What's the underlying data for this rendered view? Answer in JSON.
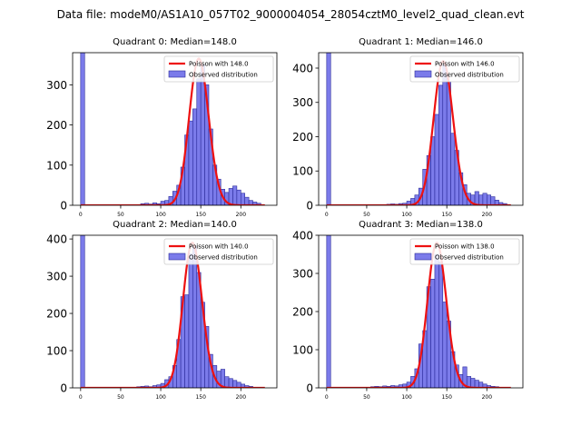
{
  "figure": {
    "suptitle": "Data file: modeM0/AS1A10_057T02_9000004054_28054cztM0_level2_quad_clean.evt"
  },
  "colors": {
    "bar_fill": "#7b7bea",
    "bar_edge": "#2a2a9a",
    "poisson_line": "#ee1111",
    "axis": "#000000"
  },
  "chart_data": [
    {
      "type": "bar",
      "title": "Quadrant 0: Median=148.0",
      "xlim": [
        -10,
        245
      ],
      "ylim": [
        0,
        380
      ],
      "xticks": [
        "0",
        "50",
        "100",
        "150",
        "200"
      ],
      "xtick_values": [
        0,
        50,
        100,
        150,
        200
      ],
      "yticks": [
        "0",
        "100",
        "200",
        "300"
      ],
      "ytick_values": [
        0,
        100,
        200,
        300
      ],
      "bin_width": 5,
      "legend": {
        "placement": "top-right",
        "entries": [
          "Poisson with 148.0",
          "Observed distribution"
        ]
      },
      "series": [
        {
          "name": "Observed distribution",
          "kind": "histogram",
          "bins": [
            [
              0,
              380
            ],
            [
              75,
              4
            ],
            [
              80,
              5
            ],
            [
              85,
              3
            ],
            [
              90,
              6
            ],
            [
              95,
              4
            ],
            [
              100,
              10
            ],
            [
              105,
              12
            ],
            [
              110,
              22
            ],
            [
              115,
              35
            ],
            [
              120,
              50
            ],
            [
              125,
              95
            ],
            [
              130,
              175
            ],
            [
              135,
              210
            ],
            [
              140,
              240
            ],
            [
              145,
              315
            ],
            [
              150,
              350
            ],
            [
              155,
              300
            ],
            [
              160,
              190
            ],
            [
              165,
              100
            ],
            [
              170,
              65
            ],
            [
              175,
              40
            ],
            [
              180,
              32
            ],
            [
              185,
              42
            ],
            [
              190,
              48
            ],
            [
              195,
              38
            ],
            [
              200,
              30
            ],
            [
              205,
              20
            ],
            [
              210,
              12
            ],
            [
              215,
              8
            ],
            [
              220,
              5
            ]
          ]
        },
        {
          "name": "Poisson with 148.0",
          "kind": "line",
          "mean": 148.0,
          "peak": 365,
          "x_range": [
            0,
            230
          ]
        }
      ]
    },
    {
      "type": "bar",
      "title": "Quadrant 1: Median=146.0",
      "xlim": [
        -10,
        245
      ],
      "ylim": [
        0,
        445
      ],
      "xticks": [
        "0",
        "50",
        "100",
        "150",
        "200"
      ],
      "xtick_values": [
        0,
        50,
        100,
        150,
        200
      ],
      "yticks": [
        "0",
        "100",
        "200",
        "300",
        "400"
      ],
      "ytick_values": [
        0,
        100,
        200,
        300,
        400
      ],
      "bin_width": 5,
      "legend": {
        "placement": "top-right",
        "entries": [
          "Poisson with 146.0",
          "Observed distribution"
        ]
      },
      "series": [
        {
          "name": "Observed distribution",
          "kind": "histogram",
          "bins": [
            [
              0,
              445
            ],
            [
              75,
              3
            ],
            [
              80,
              4
            ],
            [
              85,
              3
            ],
            [
              90,
              5
            ],
            [
              95,
              6
            ],
            [
              100,
              12
            ],
            [
              105,
              20
            ],
            [
              110,
              30
            ],
            [
              115,
              50
            ],
            [
              120,
              105
            ],
            [
              125,
              145
            ],
            [
              130,
              200
            ],
            [
              135,
              265
            ],
            [
              140,
              350
            ],
            [
              145,
              410
            ],
            [
              150,
              360
            ],
            [
              155,
              210
            ],
            [
              160,
              160
            ],
            [
              165,
              95
            ],
            [
              170,
              60
            ],
            [
              175,
              35
            ],
            [
              180,
              30
            ],
            [
              185,
              40
            ],
            [
              190,
              30
            ],
            [
              195,
              35
            ],
            [
              200,
              30
            ],
            [
              205,
              25
            ],
            [
              210,
              15
            ],
            [
              215,
              8
            ],
            [
              220,
              5
            ]
          ]
        },
        {
          "name": "Poisson with 146.0",
          "kind": "line",
          "mean": 146.0,
          "peak": 420,
          "x_range": [
            0,
            230
          ]
        }
      ]
    },
    {
      "type": "bar",
      "title": "Quadrant 2: Median=140.0",
      "xlim": [
        -10,
        245
      ],
      "ylim": [
        0,
        410
      ],
      "xticks": [
        "0",
        "50",
        "100",
        "150",
        "200"
      ],
      "xtick_values": [
        0,
        50,
        100,
        150,
        200
      ],
      "yticks": [
        "0",
        "100",
        "200",
        "300",
        "400"
      ],
      "ytick_values": [
        0,
        100,
        200,
        300,
        400
      ],
      "bin_width": 5,
      "legend": {
        "placement": "top-right",
        "entries": [
          "Poisson with 140.0",
          "Observed distribution"
        ]
      },
      "series": [
        {
          "name": "Observed distribution",
          "kind": "histogram",
          "bins": [
            [
              0,
              410
            ],
            [
              70,
              3
            ],
            [
              75,
              4
            ],
            [
              80,
              5
            ],
            [
              85,
              3
            ],
            [
              90,
              6
            ],
            [
              95,
              8
            ],
            [
              100,
              12
            ],
            [
              105,
              22
            ],
            [
              110,
              30
            ],
            [
              115,
              60
            ],
            [
              120,
              130
            ],
            [
              125,
              245
            ],
            [
              130,
              250
            ],
            [
              135,
              360
            ],
            [
              140,
              380
            ],
            [
              145,
              310
            ],
            [
              150,
              230
            ],
            [
              155,
              165
            ],
            [
              160,
              90
            ],
            [
              165,
              60
            ],
            [
              170,
              45
            ],
            [
              175,
              50
            ],
            [
              180,
              30
            ],
            [
              185,
              25
            ],
            [
              190,
              20
            ],
            [
              195,
              15
            ],
            [
              200,
              10
            ],
            [
              205,
              6
            ],
            [
              210,
              4
            ]
          ]
        },
        {
          "name": "Poisson with 140.0",
          "kind": "line",
          "mean": 140.0,
          "peak": 390,
          "x_range": [
            0,
            230
          ]
        }
      ]
    },
    {
      "type": "bar",
      "title": "Quadrant 3: Median=138.0",
      "xlim": [
        -10,
        245
      ],
      "ylim": [
        0,
        400
      ],
      "xticks": [
        "0",
        "50",
        "100",
        "150",
        "200"
      ],
      "xtick_values": [
        0,
        50,
        100,
        150,
        200
      ],
      "yticks": [
        "0",
        "100",
        "200",
        "300",
        "400"
      ],
      "ytick_values": [
        0,
        100,
        200,
        300,
        400
      ],
      "bin_width": 5,
      "legend": {
        "placement": "top-right",
        "entries": [
          "Poisson with 138.0",
          "Observed distribution"
        ]
      },
      "series": [
        {
          "name": "Observed distribution",
          "kind": "histogram",
          "bins": [
            [
              0,
              400
            ],
            [
              55,
              3
            ],
            [
              60,
              4
            ],
            [
              65,
              3
            ],
            [
              70,
              5
            ],
            [
              75,
              4
            ],
            [
              80,
              6
            ],
            [
              85,
              5
            ],
            [
              90,
              8
            ],
            [
              95,
              10
            ],
            [
              100,
              15
            ],
            [
              105,
              30
            ],
            [
              110,
              50
            ],
            [
              115,
              115
            ],
            [
              120,
              150
            ],
            [
              125,
              265
            ],
            [
              130,
              285
            ],
            [
              135,
              350
            ],
            [
              140,
              330
            ],
            [
              145,
              225
            ],
            [
              150,
              175
            ],
            [
              155,
              95
            ],
            [
              160,
              60
            ],
            [
              165,
              35
            ],
            [
              170,
              55
            ],
            [
              175,
              30
            ],
            [
              180,
              25
            ],
            [
              185,
              20
            ],
            [
              190,
              15
            ],
            [
              195,
              10
            ],
            [
              200,
              6
            ],
            [
              205,
              4
            ],
            [
              210,
              3
            ]
          ]
        },
        {
          "name": "Poisson with 138.0",
          "kind": "line",
          "mean": 138.0,
          "peak": 380,
          "x_range": [
            0,
            230
          ]
        }
      ]
    }
  ]
}
